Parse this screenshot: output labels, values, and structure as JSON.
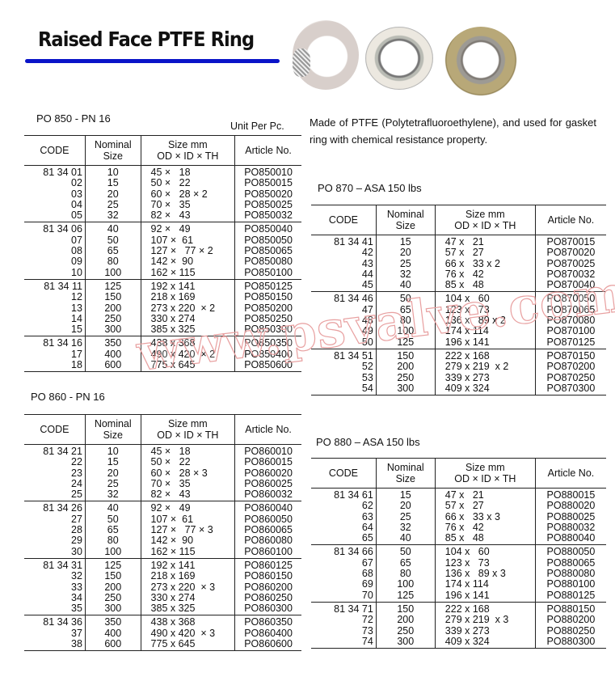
{
  "header": {
    "title": "Raised Face PTFE Ring",
    "watermark": "www.psvalve.com"
  },
  "description": "Made of PTFE (Polytetrafluoroethylene), and used for gasket ring with chemical resistance property.",
  "unit_label": "Unit Per Pc.",
  "columns": {
    "code": "CODE",
    "nominal": "Nominal\nSize",
    "size": "Size mm\nOD × ID × TH",
    "article": "Article No."
  },
  "tables": {
    "po850": {
      "title": "PO 850 - PN 16",
      "groups": [
        [
          [
            "81 34 01",
            "10",
            "45 ×   18",
            "PO850010"
          ],
          [
            "02",
            "15",
            "50 ×   22",
            "PO850015"
          ],
          [
            "03",
            "20",
            "60 ×   28 × 2",
            "PO850020"
          ],
          [
            "04",
            "25",
            "70 ×   35",
            "PO850025"
          ],
          [
            "05",
            "32",
            "82 ×   43",
            "PO850032"
          ]
        ],
        [
          [
            "81 34 06",
            "40",
            "92 ×   49",
            "PO850040"
          ],
          [
            "07",
            "50",
            "107 ×  61",
            "PO850050"
          ],
          [
            "08",
            "65",
            "127 ×   77 × 2",
            "PO850065"
          ],
          [
            "09",
            "80",
            "142 ×  90",
            "PO850080"
          ],
          [
            "10",
            "100",
            "162 × 115",
            "PO850100"
          ]
        ],
        [
          [
            "81 34 11",
            "125",
            "192 x 141",
            "PO850125"
          ],
          [
            "12",
            "150",
            "218 x 169",
            "PO850150"
          ],
          [
            "13",
            "200",
            "273 x 220  × 2",
            "PO850200"
          ],
          [
            "14",
            "250",
            "330 x 274",
            "PO850250"
          ],
          [
            "15",
            "300",
            "385 x 325",
            "PO850300"
          ]
        ],
        [
          [
            "81 34 16",
            "350",
            "438 x 368",
            "PO850350"
          ],
          [
            "17",
            "400",
            "490 x 420  × 2",
            "PO850400"
          ],
          [
            "18",
            "600",
            "775 x 645",
            "PO850600"
          ]
        ]
      ]
    },
    "po860": {
      "title": "PO 860 - PN 16",
      "groups": [
        [
          [
            "81 34 21",
            "10",
            "45 ×   18",
            "PO860010"
          ],
          [
            "22",
            "15",
            "50 ×   22",
            "PO860015"
          ],
          [
            "23",
            "20",
            "60 ×   28 × 3",
            "PO860020"
          ],
          [
            "24",
            "25",
            "70 ×   35",
            "PO860025"
          ],
          [
            "25",
            "32",
            "82 ×   43",
            "PO860032"
          ]
        ],
        [
          [
            "81 34 26",
            "40",
            "92 ×   49",
            "PO860040"
          ],
          [
            "27",
            "50",
            "107 ×  61",
            "PO860050"
          ],
          [
            "28",
            "65",
            "127 ×   77 × 3",
            "PO860065"
          ],
          [
            "29",
            "80",
            "142 ×  90",
            "PO860080"
          ],
          [
            "30",
            "100",
            "162 × 115",
            "PO860100"
          ]
        ],
        [
          [
            "81 34 31",
            "125",
            "192 x 141",
            "PO860125"
          ],
          [
            "32",
            "150",
            "218 x 169",
            "PO860150"
          ],
          [
            "33",
            "200",
            "273 x 220  × 3",
            "PO860200"
          ],
          [
            "34",
            "250",
            "330 x 274",
            "PO860250"
          ],
          [
            "35",
            "300",
            "385 x 325",
            "PO860300"
          ]
        ],
        [
          [
            "81 34 36",
            "350",
            "438 x 368",
            "PO860350"
          ],
          [
            "37",
            "400",
            "490 x 420  × 3",
            "PO860400"
          ],
          [
            "38",
            "600",
            "775 x 645",
            "PO860600"
          ]
        ]
      ]
    },
    "po870": {
      "title": "PO 870 – ASA 150 lbs",
      "groups": [
        [
          [
            "81 34 41",
            "15",
            "47 x   21",
            "PO870015"
          ],
          [
            "42",
            "20",
            "57 x   27",
            "PO870020"
          ],
          [
            "43",
            "25",
            "66 x   33 x 2",
            "PO870025"
          ],
          [
            "44",
            "32",
            "76 x   42",
            "PO870032"
          ],
          [
            "45",
            "40",
            "85 x   48",
            "PO870040"
          ]
        ],
        [
          [
            "81 34 46",
            "50",
            "104 x   60",
            "PO870050"
          ],
          [
            "47",
            "65",
            "123 x   73",
            "PO870065"
          ],
          [
            "48",
            "80",
            "136 x   89 x 2",
            "PO870080"
          ],
          [
            "49",
            "100",
            "174 x 114",
            "PO870100"
          ],
          [
            "50",
            "125",
            "196 x 141",
            "PO870125"
          ]
        ],
        [
          [
            "81 34 51",
            "150",
            "222 x 168",
            "PO870150"
          ],
          [
            "52",
            "200",
            "279 x 219  x 2",
            "PO870200"
          ],
          [
            "53",
            "250",
            "339 x 273",
            "PO870250"
          ],
          [
            "54",
            "300",
            "409 x 324",
            "PO870300"
          ]
        ]
      ]
    },
    "po880": {
      "title": "PO 880 – ASA 150 lbs",
      "groups": [
        [
          [
            "81 34 61",
            "15",
            "47 x   21",
            "PO880015"
          ],
          [
            "62",
            "20",
            "57 x   27",
            "PO880020"
          ],
          [
            "63",
            "25",
            "66 x   33 x 3",
            "PO880025"
          ],
          [
            "64",
            "32",
            "76 x   42",
            "PO880032"
          ],
          [
            "65",
            "40",
            "85 x   48",
            "PO880040"
          ]
        ],
        [
          [
            "81 34 66",
            "50",
            "104 x   60",
            "PO880050"
          ],
          [
            "67",
            "65",
            "123 x   73",
            "PO880065"
          ],
          [
            "68",
            "80",
            "136 x   89 x 3",
            "PO880080"
          ],
          [
            "69",
            "100",
            "174 x 114",
            "PO880100"
          ],
          [
            "70",
            "125",
            "196 x 141",
            "PO880125"
          ]
        ],
        [
          [
            "81 34 71",
            "150",
            "222 x 168",
            "PO880150"
          ],
          [
            "72",
            "200",
            "279 x 219  x 3",
            "PO880200"
          ],
          [
            "73",
            "250",
            "339 x 273",
            "PO880250"
          ],
          [
            "74",
            "300",
            "409 x 324",
            "PO880300"
          ]
        ]
      ]
    }
  }
}
